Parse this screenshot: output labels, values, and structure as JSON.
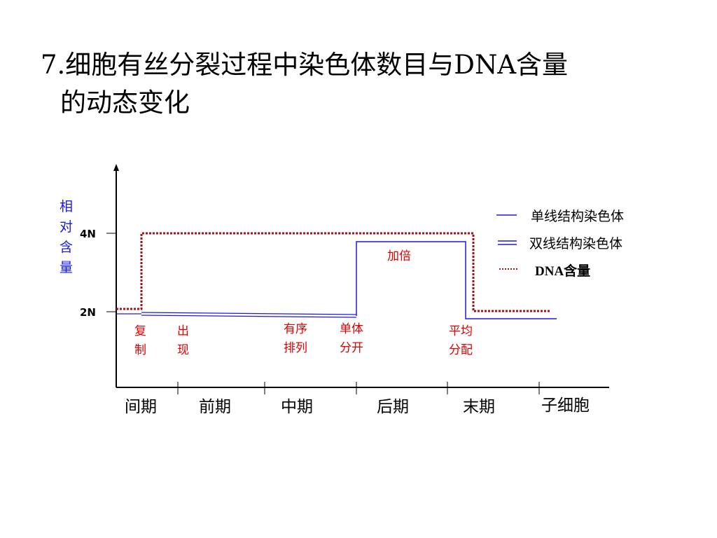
{
  "title": {
    "line1": "7.细胞有丝分裂过程中染色体数目与DNA含量",
    "line2": "的动态变化"
  },
  "y_axis": {
    "label_chars": [
      "相",
      "对",
      "含",
      "量"
    ],
    "ticks": [
      "4N",
      "2N"
    ]
  },
  "phases": [
    "间期",
    "前期",
    "中期",
    "后期",
    "末期",
    "子细胞"
  ],
  "annotations": {
    "replicate": [
      "复",
      "制"
    ],
    "appear": [
      "出",
      "现"
    ],
    "arrange": [
      "有序",
      "排列"
    ],
    "separate": [
      "单体",
      "分开"
    ],
    "double": "加倍",
    "distribute": [
      "平均",
      "分配"
    ]
  },
  "legend": [
    {
      "label": "单线结构染色体",
      "style": "single-line"
    },
    {
      "label": "双线结构染色体",
      "style": "double-line"
    },
    {
      "label": "DNA含量",
      "style": "dotted"
    }
  ],
  "colors": {
    "chromosome": "#1a1ae6",
    "dna": "#a01414",
    "annotation": "#e00000",
    "axis_label": "#1a1ae6",
    "axis": "#000000"
  }
}
